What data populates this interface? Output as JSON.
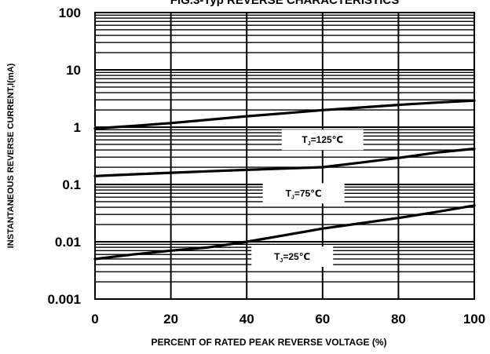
{
  "chart_data": {
    "type": "line",
    "title": "FIG.3-Typ REVERSE CHARACTERISTICS",
    "xlabel": "PERCENT OF RATED PEAK REVERSE VOLTAGE (%)",
    "ylabel": "INSTANTANEOUS REVERSE CURRENT,I(mA)",
    "xlim": [
      0,
      100
    ],
    "ylim": [
      0.001,
      100
    ],
    "y_scale": "log",
    "grid": true,
    "x_ticks": [
      "0",
      "20",
      "40",
      "60",
      "80",
      "100"
    ],
    "y_ticks": [
      "100",
      "10",
      "1",
      "0.1",
      "0.01",
      "0.001"
    ],
    "series": [
      {
        "name": "125",
        "x": [
          0,
          10,
          20,
          30,
          40,
          50,
          60,
          70,
          80,
          90,
          100
        ],
        "values": [
          0.95,
          1.05,
          1.18,
          1.35,
          1.55,
          1.75,
          1.98,
          2.2,
          2.45,
          2.68,
          2.9
        ]
      },
      {
        "name": "75",
        "x": [
          0,
          10,
          20,
          30,
          40,
          50,
          60,
          70,
          80,
          90,
          100
        ],
        "values": [
          0.14,
          0.15,
          0.16,
          0.17,
          0.18,
          0.19,
          0.2,
          0.24,
          0.29,
          0.36,
          0.42
        ]
      },
      {
        "name": "25",
        "x": [
          0,
          10,
          20,
          30,
          40,
          50,
          60,
          70,
          80,
          90,
          100
        ],
        "values": [
          0.005,
          0.006,
          0.007,
          0.008,
          0.01,
          0.013,
          0.017,
          0.021,
          0.026,
          0.033,
          0.043
        ]
      }
    ],
    "annotations": [
      {
        "label": "T",
        "sub": "J",
        "value": "=125℃",
        "x": 60,
        "y": 0.6
      },
      {
        "label": "T",
        "sub": "J",
        "value": "=75℃",
        "x": 55,
        "y": 0.07
      },
      {
        "label": "T",
        "sub": "J",
        "value": "=25℃",
        "x": 52,
        "y": 0.0055
      }
    ]
  }
}
